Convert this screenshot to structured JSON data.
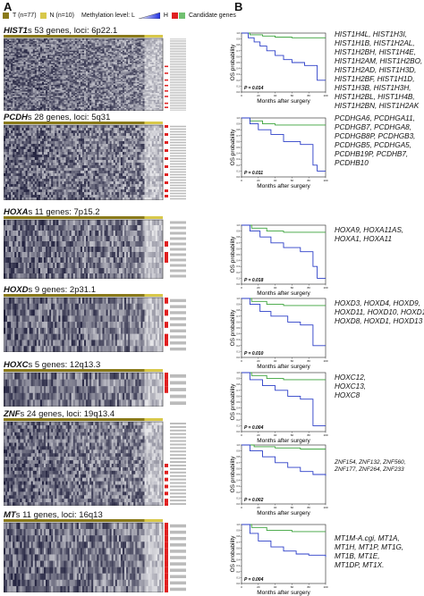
{
  "panel_a_label": "A",
  "panel_b_label": "B",
  "legend": {
    "tumor": "T (n=77)",
    "normal": "N (n=10)",
    "methylation": "Methylation level: L",
    "methylation_high": "H",
    "candidate": "Candidate genes",
    "colors": {
      "tumor": "#8a7a1a",
      "normal": "#d8c84a",
      "low": "#2030e0",
      "high": "#ffffff",
      "candidate": "#e02020"
    }
  },
  "heatmaps": [
    {
      "family": "HIST1",
      "suffix": "s 53 genes, loci: 6p22.1"
    },
    {
      "family": "PCDH",
      "suffix": "s 28 genes, loci: 5q31"
    },
    {
      "family": "HOXA",
      "suffix": "s 11 genes: 7p15.2"
    },
    {
      "family": "HOXD",
      "suffix": "s 9 genes: 2p31.1"
    },
    {
      "family": "HOXC",
      "suffix": "s 5 genes: 12q13.3"
    },
    {
      "family": "ZNF",
      "suffix": "s 24 genes, loci: 19q13.4"
    },
    {
      "family": "MT",
      "suffix": "s 11 genes, loci: 16q13"
    }
  ],
  "km_common": {
    "ylabel": "OS probability",
    "xlabel": "Months after surgery",
    "yticks": [
      "0.0",
      "0.1",
      "0.2",
      "0.3",
      "0.4",
      "0.5",
      "0.6",
      "0.7",
      "0.8",
      "0.9",
      "1.0"
    ],
    "xticks": [
      "0",
      "20",
      "40",
      "60",
      "80",
      "100"
    ]
  },
  "km_panels": [
    {
      "p": "P = 0.014",
      "genes": [
        "HIST1H4L, HIST1H3I,",
        "HIST1H1B, HIST1H2AL,",
        "HIST1H2BH, HIST1H4E,",
        "HIST1H2AM, HIST1H2BO,",
        "HIST1H2AD, HIST1H3D,",
        "HIST1H2BF, HIST1H1D,",
        "HIST1H3B, HIST1H3H,",
        "HIST1H2BL, HIST1H4B,",
        "HIST1H2BN, HIST1H2AK"
      ]
    },
    {
      "p": "P = 0.011",
      "genes": [
        "PCDHGA6, PCDHGA11,",
        "PCDHGB7, PCDHGA8,",
        "PCDHGB8P, PCDHGB3,",
        "PCDHGB5, PCDHGA5,",
        "PCDHB19P, PCDHB7,",
        "PCDHB10"
      ]
    },
    {
      "p": "P = 0.018",
      "genes": [
        "HOXA9, HOXA11AS,",
        "HOXA1, HOXA11"
      ]
    },
    {
      "p": "P = 0.010",
      "genes": [
        "HOXD3, HOXD4, HOXD9,",
        "HOXD11, HOXD10, HOXD12,",
        "HOXD8, HOXD1, HOXD13"
      ]
    },
    {
      "p": "P = 0.004",
      "genes": [
        "HOXC12,",
        "HOXC13,",
        "HOXC8"
      ]
    },
    {
      "p": "P = 0.002",
      "genes": [
        "ZNF154, ZNF132, ZNF560,",
        "ZNF177, ZNF264, ZNF233"
      ]
    },
    {
      "p": "P = 0.004",
      "genes": [
        "MT1M-A.cgi, MT1A,",
        "MT1H, MT1P, MT1G,",
        "MT1B, MT1E,",
        "MT1DP, MT1X."
      ]
    }
  ],
  "chart_data": [
    {
      "type": "line",
      "ylabel": "OS probability",
      "xlabel": "Months after surgery",
      "ylim": [
        0,
        1
      ],
      "xlim": [
        0,
        100
      ],
      "series": [
        {
          "values": [
            [
              0,
              1
            ],
            [
              10,
              0.97
            ],
            [
              25,
              0.95
            ],
            [
              40,
              0.93
            ],
            [
              60,
              0.92
            ],
            [
              100,
              0.92
            ]
          ]
        },
        {
          "values": [
            [
              0,
              1
            ],
            [
              8,
              0.92
            ],
            [
              15,
              0.85
            ],
            [
              22,
              0.78
            ],
            [
              30,
              0.7
            ],
            [
              40,
              0.62
            ],
            [
              50,
              0.55
            ],
            [
              60,
              0.5
            ],
            [
              75,
              0.45
            ],
            [
              90,
              0.2
            ],
            [
              100,
              0.2
            ]
          ]
        }
      ]
    },
    {
      "type": "line",
      "ylabel": "OS probability",
      "xlabel": "Months after surgery",
      "ylim": [
        0,
        1
      ],
      "xlim": [
        0,
        100
      ],
      "series": [
        {
          "values": [
            [
              0,
              1
            ],
            [
              10,
              0.95
            ],
            [
              25,
              0.9
            ],
            [
              40,
              0.88
            ],
            [
              60,
              0.88
            ],
            [
              100,
              0.88
            ]
          ]
        },
        {
          "values": [
            [
              0,
              1
            ],
            [
              10,
              0.9
            ],
            [
              20,
              0.8
            ],
            [
              35,
              0.72
            ],
            [
              50,
              0.6
            ],
            [
              70,
              0.55
            ],
            [
              85,
              0.2
            ],
            [
              90,
              0.1
            ],
            [
              100,
              0.1
            ]
          ]
        }
      ]
    },
    {
      "type": "line",
      "ylabel": "OS probability",
      "xlabel": "Months after surgery",
      "ylim": [
        0,
        1
      ],
      "xlim": [
        0,
        100
      ],
      "series": [
        {
          "values": [
            [
              0,
              1
            ],
            [
              12,
              0.95
            ],
            [
              30,
              0.9
            ],
            [
              50,
              0.88
            ],
            [
              100,
              0.88
            ]
          ]
        },
        {
          "values": [
            [
              0,
              1
            ],
            [
              10,
              0.9
            ],
            [
              22,
              0.8
            ],
            [
              35,
              0.7
            ],
            [
              50,
              0.62
            ],
            [
              70,
              0.55
            ],
            [
              85,
              0.3
            ],
            [
              90,
              0.1
            ],
            [
              100,
              0.1
            ]
          ]
        }
      ]
    },
    {
      "type": "line",
      "ylabel": "OS probability",
      "xlabel": "Months after surgery",
      "ylim": [
        0,
        1
      ],
      "xlim": [
        0,
        100
      ],
      "series": [
        {
          "values": [
            [
              0,
              1
            ],
            [
              12,
              0.95
            ],
            [
              30,
              0.9
            ],
            [
              50,
              0.88
            ],
            [
              100,
              0.88
            ]
          ]
        },
        {
          "values": [
            [
              0,
              1
            ],
            [
              10,
              0.9
            ],
            [
              22,
              0.78
            ],
            [
              35,
              0.7
            ],
            [
              55,
              0.6
            ],
            [
              70,
              0.55
            ],
            [
              85,
              0.2
            ],
            [
              100,
              0.2
            ]
          ]
        }
      ]
    },
    {
      "type": "line",
      "ylabel": "OS probability",
      "xlabel": "Months after surgery",
      "ylim": [
        0,
        1
      ],
      "xlim": [
        0,
        100
      ],
      "series": [
        {
          "values": [
            [
              0,
              1
            ],
            [
              12,
              0.95
            ],
            [
              30,
              0.9
            ],
            [
              50,
              0.88
            ],
            [
              100,
              0.88
            ]
          ]
        },
        {
          "values": [
            [
              0,
              1
            ],
            [
              10,
              0.88
            ],
            [
              25,
              0.78
            ],
            [
              40,
              0.7
            ],
            [
              55,
              0.6
            ],
            [
              70,
              0.55
            ],
            [
              85,
              0.1
            ],
            [
              100,
              0.1
            ]
          ]
        }
      ]
    },
    {
      "type": "line",
      "ylabel": "OS probability",
      "xlabel": "Months after surgery",
      "ylim": [
        0,
        1
      ],
      "xlim": [
        0,
        100
      ],
      "series": [
        {
          "values": [
            [
              0,
              1
            ],
            [
              15,
              0.97
            ],
            [
              40,
              0.95
            ],
            [
              70,
              0.93
            ],
            [
              100,
              0.93
            ]
          ]
        },
        {
          "values": [
            [
              0,
              1
            ],
            [
              10,
              0.9
            ],
            [
              25,
              0.8
            ],
            [
              40,
              0.7
            ],
            [
              55,
              0.62
            ],
            [
              70,
              0.55
            ],
            [
              85,
              0.5
            ],
            [
              100,
              0.48
            ]
          ]
        }
      ]
    },
    {
      "type": "line",
      "ylabel": "OS probability",
      "xlabel": "Months after surgery",
      "ylim": [
        0,
        1
      ],
      "xlim": [
        0,
        100
      ],
      "series": [
        {
          "values": [
            [
              0,
              1
            ],
            [
              12,
              0.95
            ],
            [
              30,
              0.9
            ],
            [
              60,
              0.88
            ],
            [
              100,
              0.88
            ]
          ]
        },
        {
          "values": [
            [
              0,
              1
            ],
            [
              10,
              0.85
            ],
            [
              20,
              0.72
            ],
            [
              35,
              0.62
            ],
            [
              50,
              0.55
            ],
            [
              65,
              0.5
            ],
            [
              80,
              0.48
            ],
            [
              100,
              0.45
            ]
          ]
        }
      ]
    }
  ]
}
